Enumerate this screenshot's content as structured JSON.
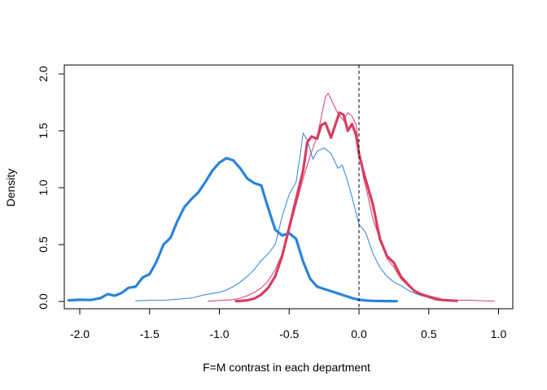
{
  "chart_data": {
    "type": "line",
    "title": "",
    "xlabel": "F=M contrast in each department",
    "ylabel": "Density",
    "xlim": [
      -2.1,
      1.1
    ],
    "ylim": [
      0,
      2.0
    ],
    "x_ticks": [
      "-2.0",
      "-1.5",
      "-1.0",
      "-0.5",
      "0.0",
      "0.5",
      "1.0"
    ],
    "y_ticks": [
      "0.0",
      "0.5",
      "1.0",
      "1.5",
      "2.0"
    ],
    "x_tick_values": [
      -2.0,
      -1.5,
      -1.0,
      -0.5,
      0.0,
      0.5,
      1.0
    ],
    "y_tick_values": [
      0,
      0.5,
      1.0,
      1.5,
      2.0
    ],
    "grid": false,
    "legend": "none",
    "reference_line": {
      "x": 0,
      "style": "dashed",
      "color": "#000000"
    },
    "series": [
      {
        "color": "#2b84d8",
        "width": "thick",
        "points": [
          [
            -2.08,
            0.01
          ],
          [
            -2.0,
            0.015
          ],
          [
            -1.92,
            0.013
          ],
          [
            -1.85,
            0.03
          ],
          [
            -1.8,
            0.065
          ],
          [
            -1.75,
            0.05
          ],
          [
            -1.7,
            0.075
          ],
          [
            -1.65,
            0.12
          ],
          [
            -1.6,
            0.13
          ],
          [
            -1.55,
            0.21
          ],
          [
            -1.5,
            0.24
          ],
          [
            -1.45,
            0.35
          ],
          [
            -1.4,
            0.5
          ],
          [
            -1.35,
            0.56
          ],
          [
            -1.3,
            0.71
          ],
          [
            -1.25,
            0.83
          ],
          [
            -1.2,
            0.9
          ],
          [
            -1.15,
            0.96
          ],
          [
            -1.1,
            1.05
          ],
          [
            -1.05,
            1.15
          ],
          [
            -1.0,
            1.22
          ],
          [
            -0.95,
            1.26
          ],
          [
            -0.9,
            1.24
          ],
          [
            -0.85,
            1.17
          ],
          [
            -0.8,
            1.08
          ],
          [
            -0.75,
            1.04
          ],
          [
            -0.7,
            1.02
          ],
          [
            -0.65,
            0.82
          ],
          [
            -0.6,
            0.63
          ],
          [
            -0.55,
            0.58
          ],
          [
            -0.5,
            0.6
          ],
          [
            -0.45,
            0.55
          ],
          [
            -0.4,
            0.35
          ],
          [
            -0.35,
            0.2
          ],
          [
            -0.3,
            0.13
          ],
          [
            -0.25,
            0.11
          ],
          [
            -0.2,
            0.09
          ],
          [
            -0.15,
            0.07
          ],
          [
            -0.1,
            0.05
          ],
          [
            -0.05,
            0.03
          ],
          [
            0.0,
            0.015
          ],
          [
            0.05,
            0.008
          ],
          [
            0.1,
            0.005
          ],
          [
            0.2,
            0.003
          ],
          [
            0.27,
            0.002
          ]
        ]
      },
      {
        "color": "#2b84d8",
        "width": "thin",
        "points": [
          [
            -1.6,
            0.005
          ],
          [
            -1.5,
            0.01
          ],
          [
            -1.4,
            0.01
          ],
          [
            -1.3,
            0.02
          ],
          [
            -1.2,
            0.03
          ],
          [
            -1.1,
            0.06
          ],
          [
            -1.0,
            0.08
          ],
          [
            -0.95,
            0.1
          ],
          [
            -0.9,
            0.13
          ],
          [
            -0.85,
            0.17
          ],
          [
            -0.8,
            0.22
          ],
          [
            -0.75,
            0.28
          ],
          [
            -0.7,
            0.36
          ],
          [
            -0.65,
            0.42
          ],
          [
            -0.6,
            0.5
          ],
          [
            -0.55,
            0.75
          ],
          [
            -0.5,
            0.94
          ],
          [
            -0.45,
            1.05
          ],
          [
            -0.42,
            1.3
          ],
          [
            -0.4,
            1.48
          ],
          [
            -0.37,
            1.42
          ],
          [
            -0.33,
            1.25
          ],
          [
            -0.3,
            1.32
          ],
          [
            -0.25,
            1.35
          ],
          [
            -0.2,
            1.3
          ],
          [
            -0.15,
            1.17
          ],
          [
            -0.12,
            1.2
          ],
          [
            -0.08,
            1.05
          ],
          [
            -0.05,
            0.92
          ],
          [
            0.0,
            0.68
          ],
          [
            0.05,
            0.6
          ],
          [
            0.1,
            0.42
          ],
          [
            0.15,
            0.3
          ],
          [
            0.2,
            0.22
          ],
          [
            0.25,
            0.17
          ],
          [
            0.3,
            0.14
          ],
          [
            0.35,
            0.1
          ],
          [
            0.4,
            0.07
          ],
          [
            0.45,
            0.05
          ],
          [
            0.5,
            0.035
          ],
          [
            0.55,
            0.02
          ],
          [
            0.6,
            0.01
          ],
          [
            0.65,
            0.005
          ]
        ]
      },
      {
        "color": "#d63e62",
        "width": "thick",
        "points": [
          [
            -0.88,
            0.003
          ],
          [
            -0.8,
            0.01
          ],
          [
            -0.75,
            0.025
          ],
          [
            -0.7,
            0.06
          ],
          [
            -0.65,
            0.12
          ],
          [
            -0.6,
            0.22
          ],
          [
            -0.55,
            0.4
          ],
          [
            -0.5,
            0.65
          ],
          [
            -0.45,
            0.9
          ],
          [
            -0.4,
            1.15
          ],
          [
            -0.37,
            1.4
          ],
          [
            -0.34,
            1.45
          ],
          [
            -0.3,
            1.43
          ],
          [
            -0.27,
            1.55
          ],
          [
            -0.24,
            1.57
          ],
          [
            -0.2,
            1.44
          ],
          [
            -0.17,
            1.55
          ],
          [
            -0.14,
            1.66
          ],
          [
            -0.11,
            1.64
          ],
          [
            -0.08,
            1.5
          ],
          [
            -0.05,
            1.56
          ],
          [
            -0.02,
            1.46
          ],
          [
            0.0,
            1.3
          ],
          [
            0.03,
            1.15
          ],
          [
            0.06,
            1.02
          ],
          [
            0.1,
            0.85
          ],
          [
            0.15,
            0.55
          ],
          [
            0.2,
            0.4
          ],
          [
            0.25,
            0.34
          ],
          [
            0.3,
            0.22
          ],
          [
            0.35,
            0.15
          ],
          [
            0.4,
            0.09
          ],
          [
            0.45,
            0.06
          ],
          [
            0.5,
            0.04
          ],
          [
            0.55,
            0.02
          ],
          [
            0.6,
            0.012
          ],
          [
            0.7,
            0.005
          ]
        ]
      },
      {
        "color": "#d63e62",
        "width": "thin",
        "points": [
          [
            -1.08,
            0.003
          ],
          [
            -1.0,
            0.008
          ],
          [
            -0.9,
            0.015
          ],
          [
            -0.85,
            0.03
          ],
          [
            -0.8,
            0.05
          ],
          [
            -0.75,
            0.08
          ],
          [
            -0.7,
            0.12
          ],
          [
            -0.65,
            0.18
          ],
          [
            -0.6,
            0.28
          ],
          [
            -0.55,
            0.42
          ],
          [
            -0.5,
            0.62
          ],
          [
            -0.45,
            0.85
          ],
          [
            -0.4,
            1.08
          ],
          [
            -0.35,
            1.28
          ],
          [
            -0.3,
            1.45
          ],
          [
            -0.27,
            1.62
          ],
          [
            -0.24,
            1.8
          ],
          [
            -0.22,
            1.83
          ],
          [
            -0.19,
            1.75
          ],
          [
            -0.15,
            1.65
          ],
          [
            -0.11,
            1.59
          ],
          [
            -0.08,
            1.66
          ],
          [
            -0.05,
            1.63
          ],
          [
            -0.02,
            1.55
          ],
          [
            0.0,
            1.35
          ],
          [
            0.03,
            1.1
          ],
          [
            0.06,
            0.95
          ],
          [
            0.1,
            0.72
          ],
          [
            0.15,
            0.55
          ],
          [
            0.2,
            0.38
          ],
          [
            0.25,
            0.3
          ],
          [
            0.3,
            0.2
          ],
          [
            0.35,
            0.14
          ],
          [
            0.4,
            0.09
          ],
          [
            0.45,
            0.07
          ],
          [
            0.5,
            0.05
          ],
          [
            0.55,
            0.035
          ],
          [
            0.6,
            0.02
          ],
          [
            0.7,
            0.012
          ],
          [
            0.8,
            0.01
          ],
          [
            0.9,
            0.005
          ],
          [
            0.97,
            0.003
          ]
        ]
      }
    ]
  }
}
